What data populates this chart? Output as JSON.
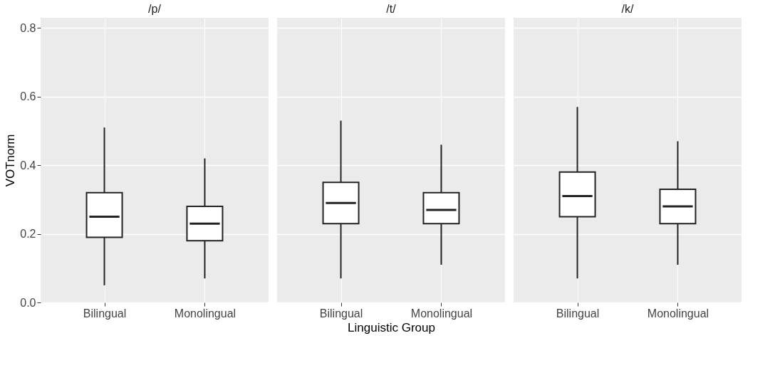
{
  "chart_data": [
    {
      "type": "box",
      "title": "/p/",
      "ylabel": "VOTnorm",
      "categories": [
        "Bilingual",
        "Monolingual"
      ],
      "color": "#ffffff",
      "ylim": [
        0,
        0.83
      ],
      "yticks": [
        {
          "value": 0,
          "label": "0.0"
        },
        0.2,
        0.4,
        0.6,
        0.8
      ],
      "grid": true,
      "boxes": [
        {
          "low": 0.05,
          "q1": 0.19,
          "median": 0.25,
          "q3": 0.32,
          "high": 0.51
        },
        {
          "low": 0.07,
          "q1": 0.18,
          "median": 0.23,
          "q3": 0.28,
          "high": 0.42
        }
      ]
    },
    {
      "type": "box",
      "title": "/t/",
      "xlabel": "Linguistic Group",
      "categories": [
        "Bilingual",
        "Monolingual"
      ],
      "color": "#ffffff",
      "ylim": [
        0,
        0.83
      ],
      "yticks": [
        0.0,
        0.2,
        0.4,
        0.6,
        0.8
      ],
      "grid": true,
      "tick_labels": "x",
      "boxes": [
        {
          "low": 0.07,
          "q1": 0.23,
          "median": 0.29,
          "q3": 0.35,
          "high": 0.53
        },
        {
          "low": 0.11,
          "q1": 0.23,
          "median": 0.27,
          "q3": 0.32,
          "high": 0.46
        }
      ]
    },
    {
      "type": "box",
      "title": "/k/",
      "categories": [
        "Bilingual",
        "Monolingual"
      ],
      "color": "#ffffff",
      "ylim": [
        0,
        0.83
      ],
      "yticks": [
        0.0,
        0.2,
        0.4,
        0.6,
        0.8
      ],
      "grid": true,
      "tick_labels": "x",
      "boxes": [
        {
          "low": 0.07,
          "q1": 0.25,
          "median": 0.31,
          "q3": 0.38,
          "high": 0.57
        },
        {
          "low": 0.11,
          "q1": 0.23,
          "median": 0.28,
          "q3": 0.33,
          "high": 0.47
        }
      ]
    }
  ]
}
